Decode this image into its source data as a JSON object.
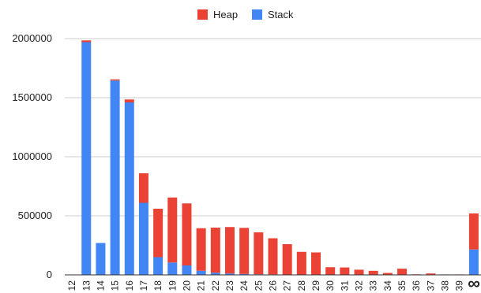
{
  "chart_data": {
    "type": "bar",
    "stacked": true,
    "title": "",
    "xlabel": "",
    "ylabel": "",
    "ylim": [
      0,
      2000000
    ],
    "yticks": [
      "0",
      "500000",
      "1000000",
      "1500000",
      "2000000"
    ],
    "grid": true,
    "legend": {
      "placement": "top-center"
    },
    "categories": [
      "12",
      "13",
      "14",
      "15",
      "16",
      "17",
      "18",
      "19",
      "20",
      "21",
      "22",
      "23",
      "24",
      "25",
      "26",
      "27",
      "28",
      "29",
      "30",
      "31",
      "32",
      "33",
      "34",
      "35",
      "36",
      "37",
      "38",
      "39",
      "∞"
    ],
    "series": [
      {
        "name": "Stack",
        "color": "#4285f4",
        "values": [
          0,
          1970000,
          270000,
          1645000,
          1460000,
          610000,
          150000,
          105000,
          80000,
          35000,
          18000,
          12000,
          8000,
          5000,
          4000,
          3000,
          2000,
          2000,
          1000,
          1000,
          1000,
          500,
          500,
          500,
          0,
          0,
          0,
          0,
          215000
        ]
      },
      {
        "name": "Heap",
        "color": "#ea4335",
        "values": [
          0,
          15000,
          0,
          10000,
          25000,
          250000,
          410000,
          550000,
          525000,
          360000,
          382000,
          393000,
          390000,
          355000,
          306000,
          257000,
          193000,
          188000,
          64000,
          62000,
          43000,
          34000,
          16000,
          52000,
          5000,
          12000,
          4000,
          4000,
          305000
        ]
      }
    ]
  }
}
